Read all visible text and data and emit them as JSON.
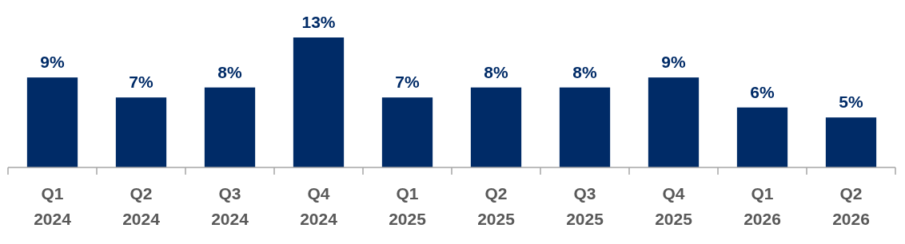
{
  "chart_data": {
    "type": "bar",
    "categories": [
      "Q1 2024",
      "Q2 2024",
      "Q3 2024",
      "Q4 2024",
      "Q1 2025",
      "Q2 2025",
      "Q3 2025",
      "Q4 2025",
      "Q1 2026",
      "Q2 2026"
    ],
    "values": [
      9,
      7,
      8,
      13,
      7,
      8,
      8,
      9,
      6,
      5
    ],
    "value_labels": [
      "9%",
      "7%",
      "8%",
      "13%",
      "7%",
      "8%",
      "8%",
      "9%",
      "6%",
      "5%"
    ],
    "color": "#002b67"
  }
}
